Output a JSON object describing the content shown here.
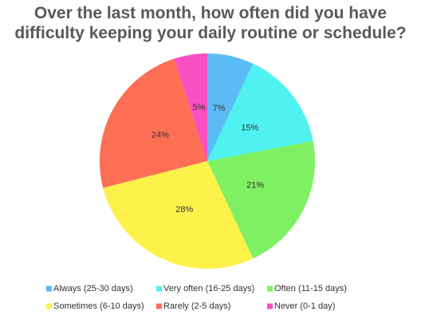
{
  "chart_data": {
    "type": "pie",
    "title": "Over the last month, how often did you have difficulty keeping your daily routine or schedule?",
    "categories": [
      "Always (25-30 days)",
      "Very often (16-25 days)",
      "Often (11-15 days)",
      "Sometimes (6-10 days)",
      "Rarely (2-5 days)",
      "Never (0-1 day)"
    ],
    "values": [
      7,
      15,
      21,
      28,
      24,
      5
    ],
    "value_labels": [
      "7%",
      "15%",
      "21%",
      "28%",
      "24%",
      "5%"
    ],
    "colors": [
      "#5bbcf5",
      "#4ff2f0",
      "#7ef062",
      "#fcf24a",
      "#fd6f55",
      "#f94fc0"
    ],
    "legend": "bottom"
  }
}
